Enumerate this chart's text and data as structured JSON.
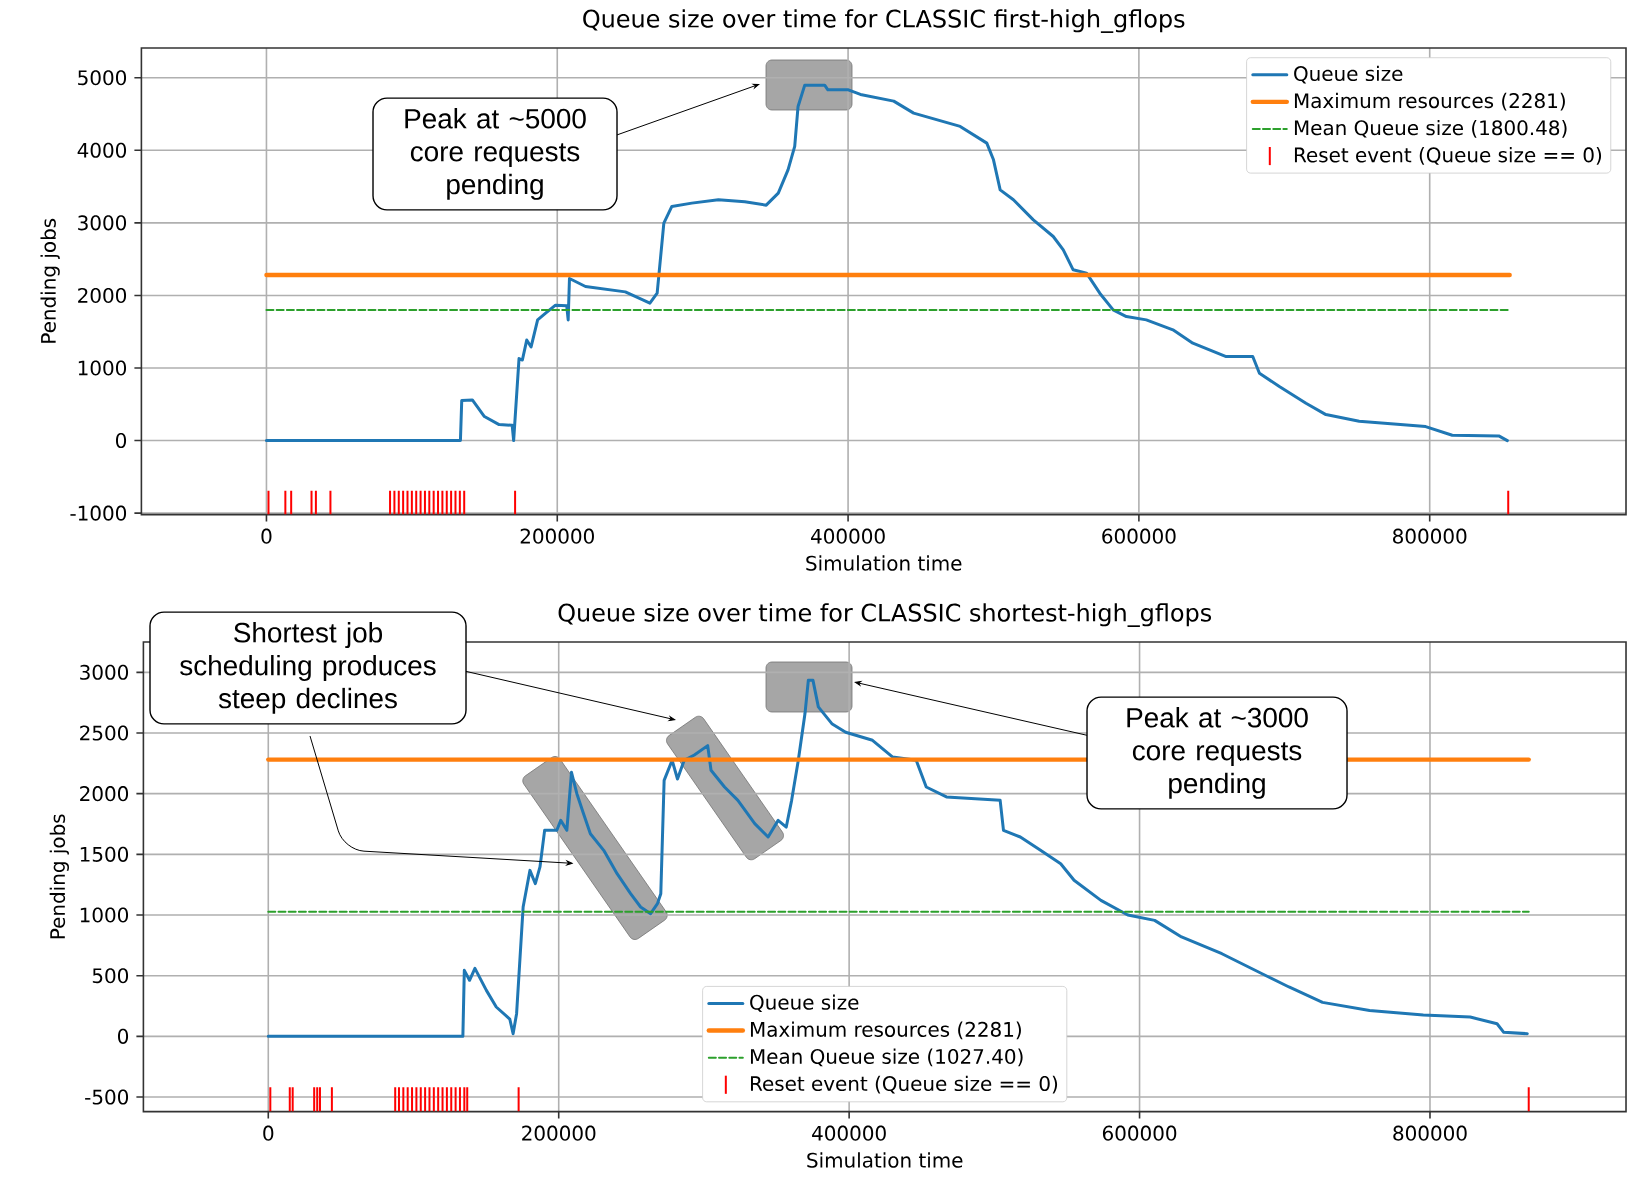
{
  "chart_data": [
    {
      "type": "line",
      "title": "Queue size over time for CLASSIC first-high_gflops",
      "xlabel": "Simulation time",
      "ylabel": "Pending jobs",
      "xlim": [
        -86000,
        935000
      ],
      "ylim": [
        -1020,
        5410
      ],
      "xticks": [
        0,
        200000,
        400000,
        600000,
        800000
      ],
      "yticks": [
        -1000,
        0,
        1000,
        2000,
        3000,
        4000,
        5000
      ],
      "grid": true,
      "legend": "top right",
      "series": [
        {
          "name": "Queue size",
          "color": "#1f77b4",
          "x": [
            0,
            133400,
            134300,
            141600,
            149900,
            160000,
            169000,
            170000,
            173700,
            176000,
            179000,
            182000,
            186500,
            192000,
            198800,
            206500,
            207500,
            208400,
            219400,
            246800,
            263700,
            268700,
            273300,
            278800,
            292500,
            310800,
            329000,
            343700,
            352000,
            358700,
            363300,
            365600,
            370200,
            383900,
            386100,
            400200,
            408500,
            431400,
            445100,
            477100,
            495400,
            500000,
            504600,
            513700,
            527400,
            541100,
            548000,
            554800,
            564000,
            573100,
            582300,
            591400,
            605100,
            623400,
            637100,
            660000,
            678300,
            682900,
            696600,
            714900,
            728600,
            751500,
            797200,
            815500,
            847500,
            853400
          ],
          "values": [
            0,
            0,
            551,
            560,
            331,
            220,
            211,
            0,
            1130,
            1110,
            1385,
            1290,
            1663,
            1755,
            1866,
            1857,
            1663,
            2233,
            2123,
            2049,
            1893,
            2031,
            2996,
            3226,
            3272,
            3318,
            3290,
            3244,
            3410,
            3731,
            4053,
            4604,
            4898,
            4898,
            4834,
            4834,
            4770,
            4678,
            4512,
            4329,
            4099,
            3869,
            3455,
            3318,
            3042,
            2812,
            2628,
            2353,
            2307,
            2031,
            1801,
            1709,
            1663,
            1526,
            1342,
            1158,
            1158,
            928,
            744,
            515,
            358,
            267,
            193,
            74,
            64,
            0
          ]
        },
        {
          "type": "line",
          "name": "Maximum resources (2281)",
          "color": "#ff7f0e",
          "x": [
            0,
            855000
          ],
          "values": [
            2281,
            2281
          ]
        },
        {
          "type": "line",
          "name": "Mean Queue size (1800.48)",
          "color": "#2ca02c",
          "line_style": "dashed",
          "x": [
            0,
            855000
          ],
          "values": [
            1800.48,
            1800.48
          ]
        },
        {
          "type": "bar",
          "name": "Reset event (Queue size == 0)",
          "color": "#ff0000",
          "x": [
            1400,
            13000,
            17000,
            31000,
            34000,
            44000,
            85000,
            88000,
            91000,
            94000,
            97000,
            100000,
            103000,
            106000,
            109000,
            112000,
            115000,
            118000,
            121000,
            124000,
            127000,
            130000,
            133000,
            136000,
            171000,
            854000
          ],
          "base": [
            -1020,
            -1020,
            -1020,
            -1020,
            -1020,
            -1020,
            -1020,
            -1020,
            -1020,
            -1020,
            -1020,
            -1020,
            -1020,
            -1020,
            -1020,
            -1020,
            -1020,
            -1020,
            -1020,
            -1020,
            -1020,
            -1020,
            -1020,
            -1020,
            -1020,
            -1020
          ],
          "values": [
            330,
            330,
            330,
            330,
            330,
            330,
            330,
            330,
            330,
            330,
            330,
            330,
            330,
            330,
            330,
            330,
            330,
            330,
            330,
            330,
            330,
            330,
            330,
            330,
            330,
            330
          ]
        }
      ],
      "annotations": [
        "Peak at ~5000 core requests pending"
      ]
    },
    {
      "type": "line",
      "title": "Queue size over time for CLASSIC shortest-high_gflops",
      "xlabel": "Simulation time",
      "ylabel": "Pending jobs",
      "xlim": [
        -86000,
        935000
      ],
      "ylim": [
        -620,
        3250
      ],
      "xticks": [
        0,
        200000,
        400000,
        600000,
        800000
      ],
      "yticks": [
        -500,
        0,
        500,
        1000,
        1500,
        2000,
        2500,
        3000
      ],
      "grid": true,
      "legend": "bottom",
      "series": [
        {
          "name": "Queue size",
          "color": "#1f77b4",
          "x": [
            0,
            134000,
            135000,
            138600,
            142300,
            150200,
            157000,
            166300,
            168600,
            171000,
            175500,
            180200,
            183900,
            187100,
            190300,
            198700,
            201400,
            205600,
            208800,
            212500,
            217100,
            221800,
            231000,
            240200,
            249500,
            256400,
            263300,
            268000,
            270300,
            272600,
            278100,
            281800,
            286400,
            293400,
            302600,
            304900,
            314200,
            323400,
            335000,
            344200,
            351100,
            356700,
            360400,
            365000,
            369600,
            371900,
            375100,
            378800,
            388100,
            397600,
            416100,
            430000,
            446200,
            453100,
            467000,
            504000,
            506300,
            517900,
            531800,
            545700,
            554900,
            573400,
            591900,
            610400,
            628900,
            656700,
            684400,
            702900,
            726000,
            758400,
            795400,
            827700,
            846200,
            850800,
            867000
          ],
          "values": [
            0,
            0,
            544,
            462,
            560,
            379,
            242,
            143,
            22,
            187,
            1066,
            1368,
            1258,
            1396,
            1698,
            1698,
            1780,
            1698,
            2176,
            2000,
            1835,
            1670,
            1533,
            1341,
            1176,
            1066,
            1011,
            1094,
            1176,
            2110,
            2275,
            2121,
            2275,
            2319,
            2396,
            2193,
            2055,
            1945,
            1753,
            1643,
            1780,
            1725,
            1945,
            2275,
            2660,
            2934,
            2934,
            2715,
            2577,
            2506,
            2440,
            2302,
            2275,
            2055,
            1973,
            1945,
            1698,
            1643,
            1533,
            1423,
            1286,
            1121,
            1000,
            956,
            819,
            681,
            516,
            407,
            280,
            214,
            176,
            159,
            104,
            33,
            22
          ]
        },
        {
          "type": "line",
          "name": "Maximum resources (2281)",
          "color": "#ff7f0e",
          "x": [
            0,
            868000
          ],
          "values": [
            2281,
            2281
          ]
        },
        {
          "type": "line",
          "name": "Mean Queue size (1027.40)",
          "color": "#2ca02c",
          "line_style": "dashed",
          "x": [
            0,
            868000
          ],
          "values": [
            1027.4,
            1027.4
          ]
        },
        {
          "type": "bar",
          "name": "Reset event (Queue size == 0)",
          "color": "#ff0000",
          "x": [
            1400,
            14800,
            16800,
            31600,
            33700,
            35600,
            43800,
            87400,
            90000,
            93000,
            96000,
            99000,
            102000,
            105000,
            108000,
            111000,
            114000,
            117000,
            120000,
            123000,
            126000,
            129000,
            132000,
            135000,
            137000,
            172400,
            868000
          ],
          "base": [
            -620,
            -620,
            -620,
            -620,
            -620,
            -620,
            -620,
            -620,
            -620,
            -620,
            -620,
            -620,
            -620,
            -620,
            -620,
            -620,
            -620,
            -620,
            -620,
            -620,
            -620,
            -620,
            -620,
            -620,
            -620,
            -620,
            -620
          ],
          "values": [
            200,
            200,
            200,
            200,
            200,
            200,
            200,
            200,
            200,
            200,
            200,
            200,
            200,
            200,
            200,
            200,
            200,
            200,
            200,
            200,
            200,
            200,
            200,
            200,
            200,
            200,
            200
          ]
        }
      ],
      "annotations": [
        "Shortest job scheduling produces steep declines",
        "Peak at ~3000 core requests pending"
      ]
    }
  ]
}
